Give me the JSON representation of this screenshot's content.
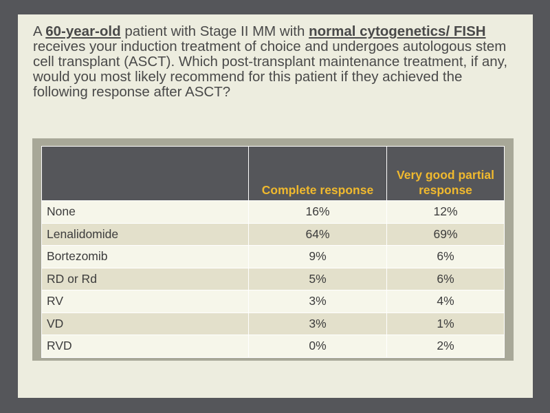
{
  "question": {
    "part1": "A ",
    "highlight1": "60-year-old",
    "part2": " patient with Stage II MM with ",
    "highlight2": "normal cytogenetics/ FISH",
    "part3": " receives your induction treatment of choice and undergoes autologous stem cell transplant (ASCT). Which post-transplant maintenance treatment, if any, would you most likely recommend for this patient if they achieved the following response after ASCT?"
  },
  "table": {
    "headers": [
      "",
      "Complete response",
      "Very good partial response"
    ],
    "rows": [
      {
        "label": "None",
        "complete": "16%",
        "vgpr": "12%"
      },
      {
        "label": "Lenalidomide",
        "complete": "64%",
        "vgpr": "69%"
      },
      {
        "label": "Bortezomib",
        "complete": "9%",
        "vgpr": "6%"
      },
      {
        "label": "RD or Rd",
        "complete": "5%",
        "vgpr": "6%"
      },
      {
        "label": "RV",
        "complete": "3%",
        "vgpr": "4%"
      },
      {
        "label": "VD",
        "complete": "3%",
        "vgpr": "1%"
      },
      {
        "label": "RVD",
        "complete": "0%",
        "vgpr": "2%"
      }
    ]
  },
  "colors": {
    "background": "#55565a",
    "slide": "#ededdf",
    "header_bg": "#55565a",
    "header_text": "#f0b92e",
    "row_light": "#f6f6ea",
    "row_dark": "#e3e0cb"
  }
}
